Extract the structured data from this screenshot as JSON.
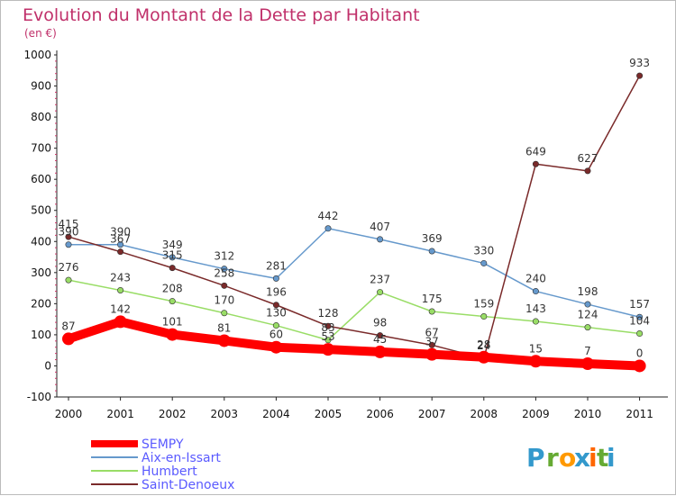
{
  "chart_data": {
    "type": "line",
    "title": "Evolution du Montant de la Dette par Habitant",
    "subtitle": "(en €)",
    "xlabel": "",
    "ylabel": "",
    "x": [
      "2000",
      "2001",
      "2002",
      "2003",
      "2004",
      "2005",
      "2006",
      "2007",
      "2008",
      "2009",
      "2010",
      "2011"
    ],
    "ylim": [
      -100,
      1000
    ],
    "yticks": [
      -100,
      0,
      100,
      200,
      300,
      400,
      500,
      600,
      700,
      800,
      900,
      1000
    ],
    "ytick_labels": [
      "-100",
      "0",
      "100",
      "200",
      "300",
      "400",
      "500",
      "600",
      "700",
      "800",
      "900",
      "1000"
    ],
    "grid": false,
    "legend_position": "bottom-left",
    "series": [
      {
        "name": "SEMPY",
        "color": "#ff0000",
        "values": [
          87,
          142,
          101,
          81,
          60,
          53,
          45,
          37,
          28,
          15,
          7,
          0
        ]
      },
      {
        "name": "Aix-en-Issart",
        "color": "#6699cc",
        "values": [
          390,
          390,
          349,
          312,
          281,
          442,
          407,
          369,
          330,
          240,
          198,
          157
        ]
      },
      {
        "name": "Humbert",
        "color": "#99dd66",
        "values": [
          276,
          243,
          208,
          170,
          130,
          83,
          237,
          175,
          159,
          143,
          124,
          104
        ]
      },
      {
        "name": "Saint-Denoeux",
        "color": "#7a2a2a",
        "values": [
          415,
          367,
          315,
          258,
          196,
          128,
          98,
          67,
          24,
          649,
          627,
          933
        ]
      }
    ],
    "data_labels": [
      [
        "87",
        "142",
        "101",
        "81",
        "60",
        "53",
        "45",
        "37",
        "28",
        "15",
        "7",
        "0"
      ],
      [
        "390",
        "390",
        "349",
        "312",
        "281",
        "442",
        "407",
        "369",
        "330",
        "240",
        "198",
        "157"
      ],
      [
        "276",
        "243",
        "208",
        "170",
        "130",
        "83",
        "237",
        "175",
        "159",
        "143",
        "124",
        "104"
      ],
      [
        "415",
        "367",
        "315",
        "258",
        "196",
        "128",
        "98",
        "67",
        "24",
        "649",
        "627",
        "933"
      ]
    ]
  },
  "logo": {
    "text": "Proxiti",
    "letters": [
      "P",
      "r",
      "o",
      "x",
      "i",
      "t",
      "i"
    ],
    "colors": [
      "#3399cc",
      "#66aa33",
      "#ff9900",
      "#3399cc",
      "#ff6600",
      "#66aa33",
      "#3399cc"
    ]
  }
}
